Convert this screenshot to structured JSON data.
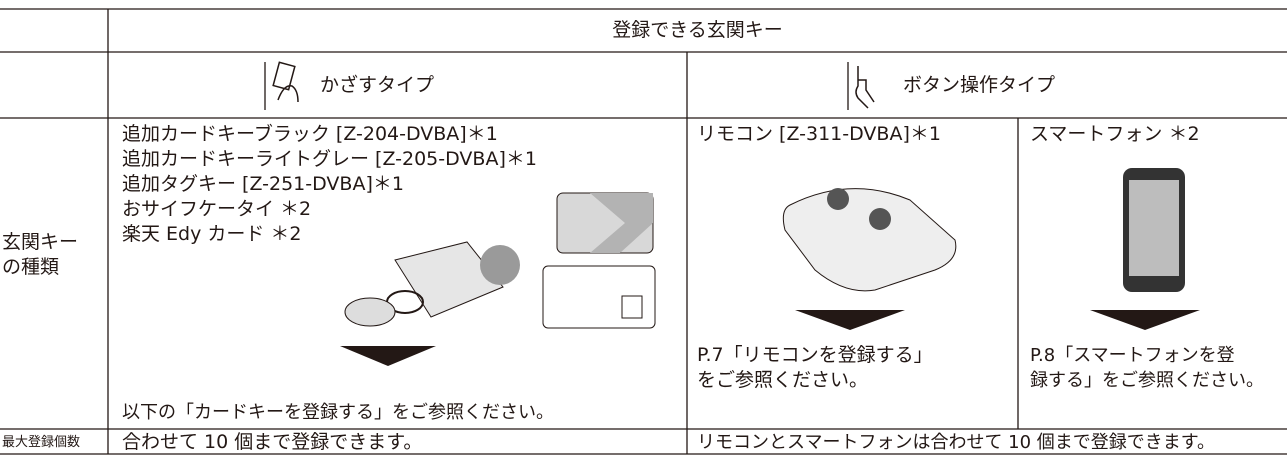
{
  "table": {
    "header": "登録できる玄関キー",
    "types": [
      "かざすタイプ",
      "ボタン操作タイプ"
    ],
    "row_labels": [
      [
        "玄関キー",
        "の種類"
      ],
      "最大登録個数"
    ],
    "card_items": [
      "追加カードキーブラック [Z-204-DVBA]＊1",
      "追加カードキーライトグレー [Z-205-DVBA]＊1",
      "追加タグキー [Z-251-DVBA]＊1",
      "おサイフケータイ ＊2",
      "楽天 Edy カード ＊2"
    ],
    "card_note": "以下の「カードキーを登録する」をご参照ください。",
    "remote": {
      "title": "リモコン [Z-311-DVBA]＊1",
      "note": [
        "P.7「リモコンを登録する」",
        "をご参照ください。"
      ]
    },
    "phone": {
      "title": "スマートフォン ＊2",
      "note": [
        "P.8「スマートフォンを登",
        "録する」をご参照ください。"
      ]
    },
    "max_card": "合わせて 10 個まで登録できます。",
    "max_button": "リモコンとスマートフォンは合わせて 10 個まで登録できます。"
  }
}
